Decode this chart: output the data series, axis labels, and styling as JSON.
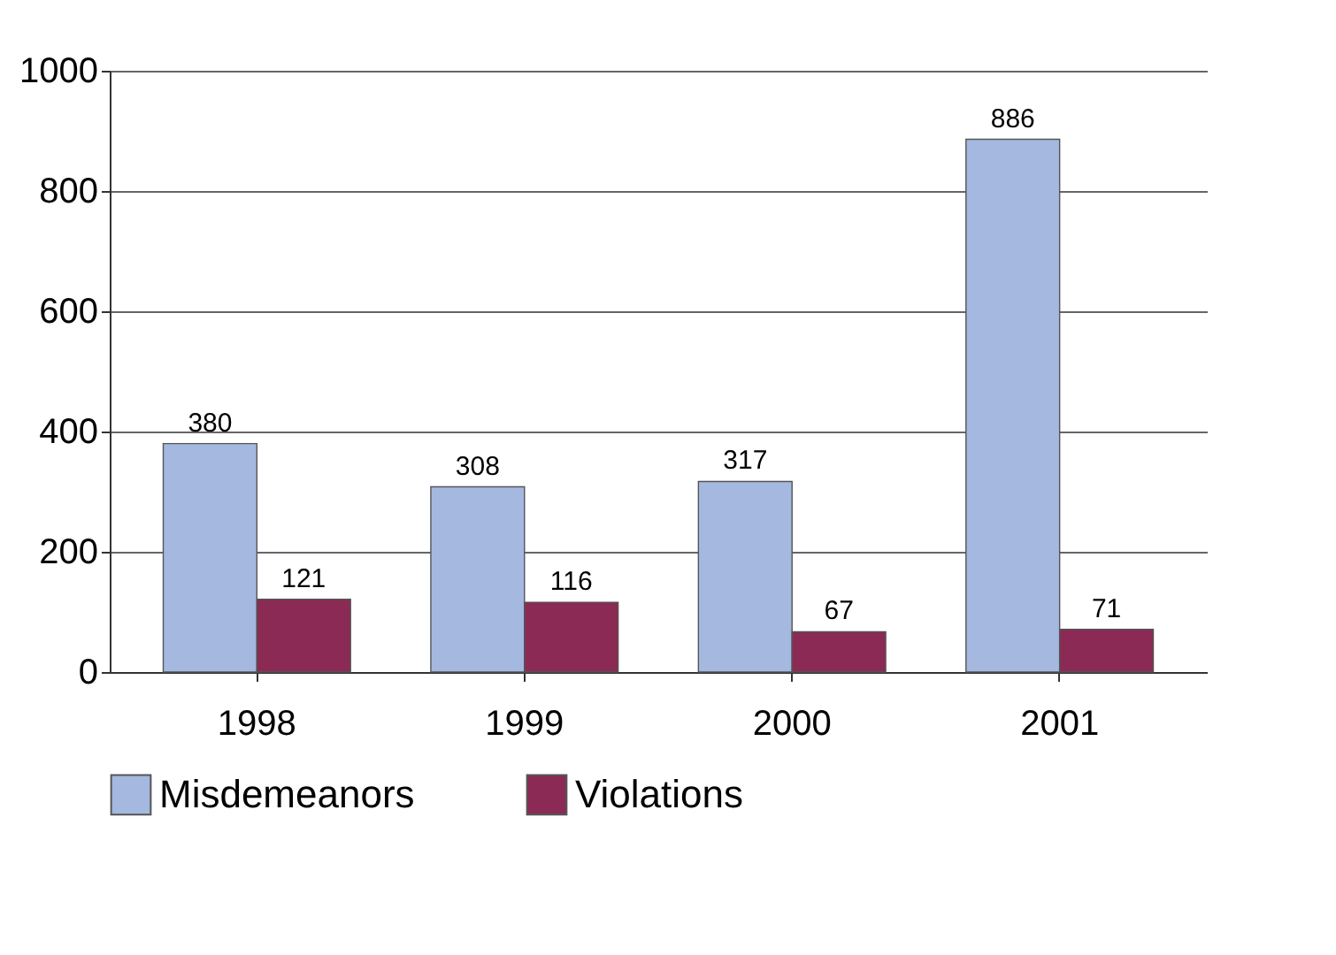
{
  "chart_data": {
    "type": "bar",
    "categories": [
      "1998",
      "1999",
      "2000",
      "2001"
    ],
    "series": [
      {
        "name": "Misdemeanors",
        "color": "#a4b8e0",
        "values": [
          380,
          308,
          317,
          886
        ]
      },
      {
        "name": "Violations",
        "color": "#8b2a55",
        "values": [
          121,
          116,
          67,
          71
        ]
      }
    ],
    "ylim": [
      0,
      1000
    ],
    "yticks": [
      0,
      200,
      400,
      600,
      800,
      1000
    ],
    "grid": "y",
    "legend": "bottom",
    "data_labels": true
  }
}
